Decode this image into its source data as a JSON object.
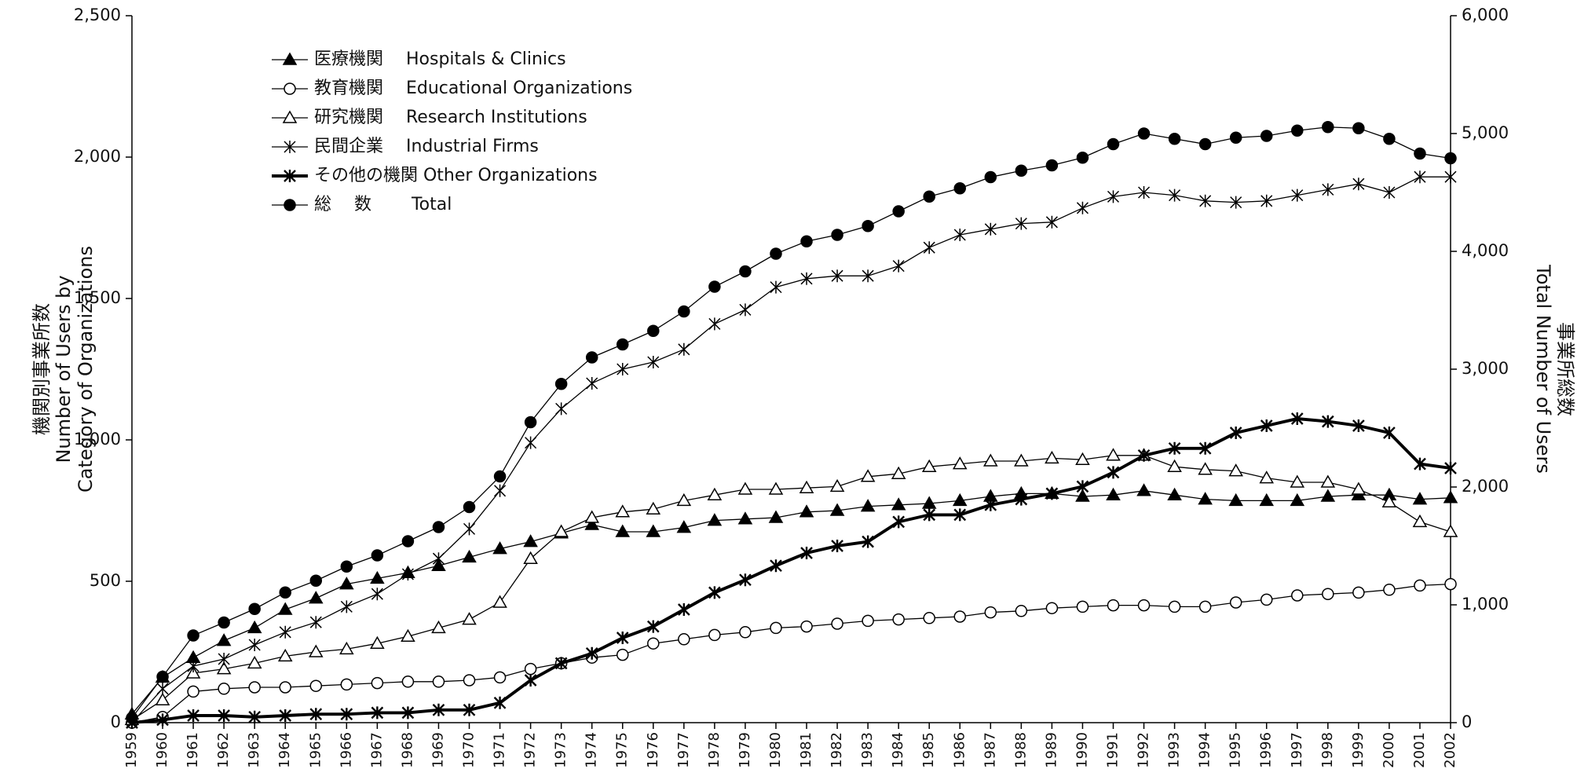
{
  "chart_data": {
    "type": "line",
    "y_label": [
      "機関別事業所数",
      "Number of Users by",
      "Category of Organizations"
    ],
    "y2_label": [
      "事業所総数",
      "Total Number of Users"
    ],
    "categories": [
      "1959",
      "1960",
      "1961",
      "1962",
      "1963",
      "1964",
      "1965",
      "1966",
      "1967",
      "1968",
      "1969",
      "1970",
      "1971",
      "1972",
      "1973",
      "1974",
      "1975",
      "1976",
      "1977",
      "1978",
      "1979",
      "1980",
      "1981",
      "1982",
      "1983",
      "1984",
      "1985",
      "1986",
      "1987",
      "1988",
      "1989",
      "1990",
      "1991",
      "1992",
      "1993",
      "1994",
      "1995",
      "1996",
      "1997",
      "1998",
      "1999",
      "2000",
      "2001",
      "2002"
    ],
    "ylim": [
      0,
      2500
    ],
    "yticks": [
      0,
      500,
      {
        "value": 1000,
        "label": "1,000"
      },
      {
        "value": 1500,
        "label": "1,500"
      },
      {
        "value": 2000,
        "label": "2,000"
      },
      {
        "value": 2500,
        "label": "2,500"
      }
    ],
    "y2lim": [
      0,
      6000
    ],
    "y2ticks": [
      0,
      {
        "value": 1000,
        "label": "1,000"
      },
      {
        "value": 2000,
        "label": "2,000"
      },
      {
        "value": 3000,
        "label": "3,000"
      },
      {
        "value": 4000,
        "label": "4,000"
      },
      {
        "value": 5000,
        "label": "5,000"
      },
      {
        "value": 6000,
        "label": "6,000"
      }
    ],
    "grid": false,
    "legend": "upper left",
    "series": [
      {
        "name": "医療機関　 Hospitals & Clinics",
        "color": "#000000",
        "marker": "triangle-filled",
        "width": 1,
        "values": [
          30,
          160,
          230,
          290,
          335,
          400,
          440,
          490,
          510,
          530,
          555,
          585,
          615,
          640,
          670,
          700,
          675,
          675,
          690,
          715,
          720,
          725,
          745,
          750,
          765,
          770,
          775,
          785,
          800,
          810,
          810,
          800,
          805,
          820,
          805,
          790,
          785,
          785,
          785,
          800,
          805,
          805,
          790,
          795
        ]
      },
      {
        "name": "教育機関　 Educational Organizations",
        "color": "#000000",
        "marker": "circle-open",
        "width": 1,
        "values": [
          0,
          20,
          110,
          120,
          125,
          125,
          130,
          135,
          140,
          145,
          145,
          150,
          160,
          190,
          210,
          230,
          240,
          280,
          295,
          310,
          320,
          335,
          340,
          350,
          360,
          365,
          370,
          375,
          390,
          395,
          405,
          410,
          415,
          415,
          410,
          410,
          425,
          435,
          450,
          455,
          460,
          470,
          485,
          490
        ]
      },
      {
        "name": "研究機関　 Research Institutions",
        "color": "#000000",
        "marker": "triangle-open",
        "width": 1,
        "values": [
          10,
          80,
          175,
          190,
          210,
          235,
          250,
          260,
          280,
          305,
          335,
          365,
          425,
          580,
          675,
          725,
          745,
          755,
          785,
          805,
          825,
          825,
          830,
          835,
          870,
          880,
          905,
          915,
          925,
          925,
          935,
          930,
          945,
          945,
          905,
          895,
          890,
          865,
          850,
          850,
          825,
          780,
          710,
          675
        ]
      },
      {
        "name": "民間企業　 Industrial Firms",
        "color": "#000000",
        "marker": "asterisk",
        "width": 1,
        "values": [
          0,
          120,
          200,
          225,
          275,
          320,
          355,
          410,
          455,
          525,
          580,
          685,
          820,
          990,
          1110,
          1200,
          1250,
          1275,
          1320,
          1410,
          1460,
          1540,
          1570,
          1580,
          1580,
          1615,
          1680,
          1725,
          1745,
          1765,
          1770,
          1820,
          1860,
          1875,
          1865,
          1845,
          1840,
          1845,
          1865,
          1885,
          1905,
          1875,
          1930,
          1930
        ]
      },
      {
        "name": "その他の機関 Other Organizations",
        "color": "#000000",
        "marker": "asterisk",
        "width": 3,
        "values": [
          0,
          10,
          25,
          25,
          20,
          25,
          30,
          30,
          35,
          35,
          45,
          45,
          70,
          150,
          210,
          245,
          300,
          340,
          400,
          460,
          505,
          555,
          600,
          625,
          640,
          710,
          735,
          735,
          770,
          790,
          810,
          835,
          885,
          945,
          970,
          970,
          1025,
          1050,
          1075,
          1065,
          1050,
          1025,
          915,
          900
        ]
      },
      {
        "name": "総　 数　　 Total",
        "color": "#000000",
        "marker": "circle-filled",
        "width": 1,
        "axis": "y2",
        "values": [
          40,
          390,
          740,
          850,
          965,
          1105,
          1205,
          1325,
          1420,
          1540,
          1660,
          1830,
          2090,
          2550,
          2875,
          3100,
          3210,
          3325,
          3490,
          3700,
          3830,
          3980,
          4085,
          4140,
          4215,
          4340,
          4465,
          4535,
          4630,
          4685,
          4730,
          4795,
          4910,
          5000,
          4955,
          4910,
          4965,
          4980,
          5025,
          5055,
          5045,
          4955,
          4830,
          4790
        ]
      }
    ]
  }
}
